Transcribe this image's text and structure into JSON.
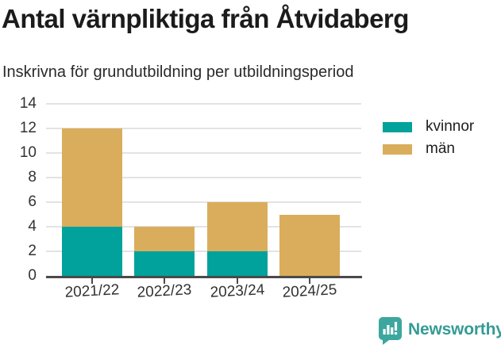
{
  "header": {
    "title": "Antal värnpliktiga från Åtvidaberg",
    "subtitle": "Inskrivna för grundutbildning per utbildningsperiod"
  },
  "chart_data": {
    "type": "bar",
    "stacked": true,
    "title": "Antal värnpliktiga från Åtvidaberg",
    "subtitle": "Inskrivna för grundutbildning per utbildningsperiod",
    "categories": [
      "2021/22",
      "2022/23",
      "2023/24",
      "2024/25"
    ],
    "series": [
      {
        "name": "kvinnor",
        "color": "#00a29b",
        "values": [
          4,
          2,
          2,
          0
        ]
      },
      {
        "name": "män",
        "color": "#daad5c",
        "values": [
          8,
          2,
          4,
          5
        ]
      }
    ],
    "totals": [
      12,
      4,
      6,
      5
    ],
    "xlabel": "",
    "ylabel": "",
    "ylim": [
      0,
      14
    ],
    "yticks": [
      0,
      2,
      4,
      6,
      8,
      10,
      12,
      14
    ],
    "grid": true,
    "gridline_color": "#e3e3e3",
    "axis_color": "#4a4a4a",
    "legend_position": "right-top"
  },
  "legend": {
    "items": [
      {
        "label": "kvinnor",
        "color": "#00a29b"
      },
      {
        "label": "män",
        "color": "#daad5c"
      }
    ]
  },
  "branding": {
    "logo_text": "Newsworthy",
    "logo_color": "#359b94",
    "logo_icon": "newsworthy-speech-bubble-bar-chart-icon"
  }
}
